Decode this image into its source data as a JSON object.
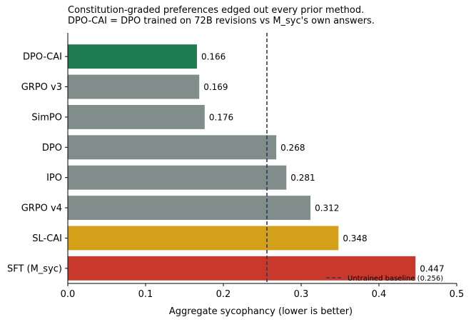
{
  "header": {
    "title": "Constitution-graded preferences edged out every prior method.",
    "subtitle": "DPO-CAI = DPO trained on 72B revisions vs M_syc's own answers."
  },
  "chart_data": {
    "type": "bar",
    "orientation": "horizontal",
    "categories": [
      "DPO-CAI",
      "GRPO v3",
      "SimPO",
      "DPO",
      "IPO",
      "GRPO v4",
      "SL-CAI",
      "SFT (M_syc)"
    ],
    "values": [
      0.166,
      0.169,
      0.176,
      0.268,
      0.281,
      0.312,
      0.348,
      0.447
    ],
    "value_labels": [
      "0.166",
      "0.169",
      "0.176",
      "0.268",
      "0.281",
      "0.312",
      "0.348",
      "0.447"
    ],
    "colors": [
      "#1e7b4f",
      "#808d8b",
      "#808d8b",
      "#808d8b",
      "#808d8b",
      "#808d8b",
      "#d5a019",
      "#c8392b"
    ],
    "xlabel": "Aggregate sycophancy (lower is better)",
    "ylabel": "",
    "xlim": [
      0.0,
      0.5
    ],
    "xticks": [
      0.0,
      0.1,
      0.2,
      0.3,
      0.4,
      0.5
    ],
    "xtick_labels": [
      "0.0",
      "0.1",
      "0.2",
      "0.3",
      "0.4",
      "0.5"
    ],
    "grid": false,
    "reference_line": {
      "value": 0.256,
      "style": "dashed",
      "color": "#2b3b5a",
      "label": "Untrained baseline (0.256)"
    },
    "legend_placement": "lower-right"
  }
}
